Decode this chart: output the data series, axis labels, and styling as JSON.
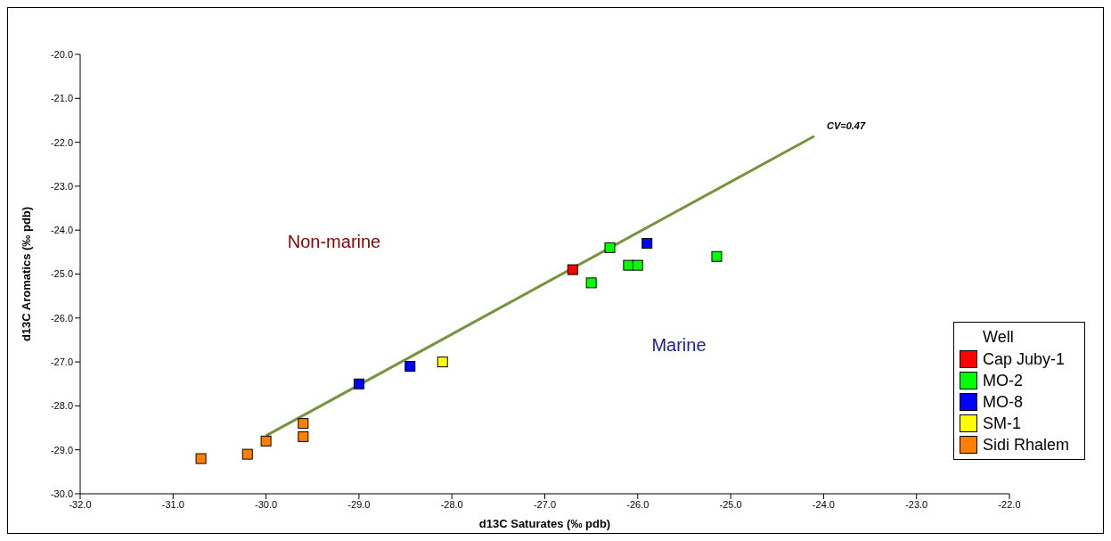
{
  "chart_data": {
    "type": "scatter",
    "xlabel": "d13C Saturates (‰ pdb)",
    "ylabel": "d13C Aromatics (‰ pdb)",
    "legend_title": "Well",
    "legend": "bottom right",
    "marker": "square",
    "xlim": [
      -32,
      -22
    ],
    "xticks": [
      {
        "value": -32,
        "label": "-32.0"
      },
      {
        "value": -31,
        "label": "-31.0"
      },
      {
        "value": -30,
        "label": "-30.0"
      },
      {
        "value": -29,
        "label": "-29.0"
      },
      {
        "value": -28,
        "label": "-28.0"
      },
      {
        "value": -27,
        "label": "-27.0"
      },
      {
        "value": -26,
        "label": "-26.0"
      },
      {
        "value": -25,
        "label": "-25.0"
      },
      {
        "value": -24,
        "label": "-24.0"
      },
      {
        "value": -23,
        "label": "-23.0"
      },
      {
        "value": -22,
        "label": "-22.0"
      }
    ],
    "ylim": [
      -30,
      -20
    ],
    "yticks": [
      {
        "value": -30,
        "label": "-30.0"
      },
      {
        "value": -29,
        "label": "-29.0"
      },
      {
        "value": -28,
        "label": "-28.0"
      },
      {
        "value": -27,
        "label": "-27.0"
      },
      {
        "value": -26,
        "label": "-26.0"
      },
      {
        "value": -25,
        "label": "-25.0"
      },
      {
        "value": -24,
        "label": "-24.0"
      },
      {
        "value": -23,
        "label": "-23.0"
      },
      {
        "value": -22,
        "label": "-22.0"
      },
      {
        "value": -21,
        "label": "-21.0"
      },
      {
        "value": -20,
        "label": "-20.0"
      }
    ],
    "series": [
      {
        "type": "line",
        "color": "#77933c",
        "marker": "none",
        "x": [
          -30.0,
          -24.1
        ],
        "values": [
          -28.68,
          -21.86
        ]
      },
      {
        "name": "Cap Juby-1",
        "color": "#ff0000",
        "x": [
          -26.7
        ],
        "values": [
          -24.9
        ]
      },
      {
        "name": "MO-2",
        "color": "#00ff00",
        "x": [
          -26.3,
          -26.5,
          -26.1,
          -26.0,
          -25.15
        ],
        "values": [
          -24.4,
          -25.2,
          -24.8,
          -24.8,
          -24.6
        ]
      },
      {
        "name": "MO-8",
        "color": "#0000ff",
        "x": [
          -25.9,
          -28.45,
          -29.0
        ],
        "values": [
          -24.3,
          -27.1,
          -27.5
        ]
      },
      {
        "name": "SM-1",
        "color": "#ffff00",
        "x": [
          -28.1
        ],
        "values": [
          -27.0
        ]
      },
      {
        "name": "Sidi Rhalem",
        "color": "#ff8000",
        "x": [
          -30.7,
          -30.2,
          -30.0,
          -29.6,
          -29.6
        ],
        "values": [
          -29.2,
          -29.1,
          -28.8,
          -28.4,
          -28.7
        ]
      }
    ],
    "annotations": [
      {
        "text": "CV=0.47",
        "x": -24.1,
        "y": -21.86
      },
      "Non-marine",
      "Marine"
    ]
  }
}
